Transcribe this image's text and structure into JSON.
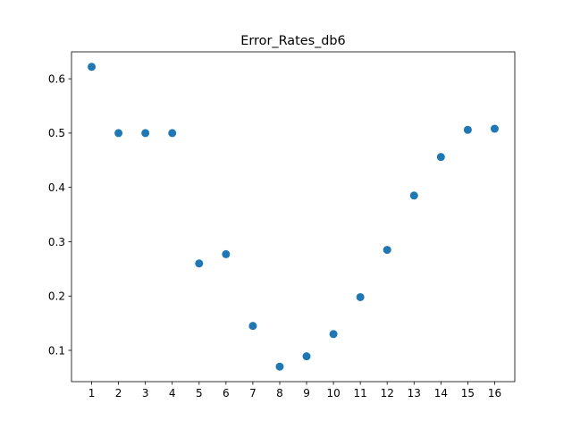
{
  "chart_data": {
    "type": "scatter",
    "title": "Error_Rates_db6",
    "xlabel": "",
    "ylabel": "",
    "x": [
      1,
      2,
      3,
      4,
      5,
      6,
      7,
      8,
      9,
      10,
      11,
      12,
      13,
      14,
      15,
      16
    ],
    "y": [
      0.622,
      0.5,
      0.5,
      0.5,
      0.26,
      0.277,
      0.145,
      0.07,
      0.089,
      0.13,
      0.198,
      0.285,
      0.385,
      0.456,
      0.506,
      0.508
    ],
    "xlim": [
      0.25,
      16.75
    ],
    "ylim": [
      0.0424,
      0.6496
    ],
    "xticks": [
      1,
      2,
      3,
      4,
      5,
      6,
      7,
      8,
      9,
      10,
      11,
      12,
      13,
      14,
      15,
      16
    ],
    "yticks": [
      0.1,
      0.2,
      0.3,
      0.4,
      0.5,
      0.6
    ],
    "marker_color": "#1f77b4",
    "grid": false,
    "legend": "none"
  }
}
